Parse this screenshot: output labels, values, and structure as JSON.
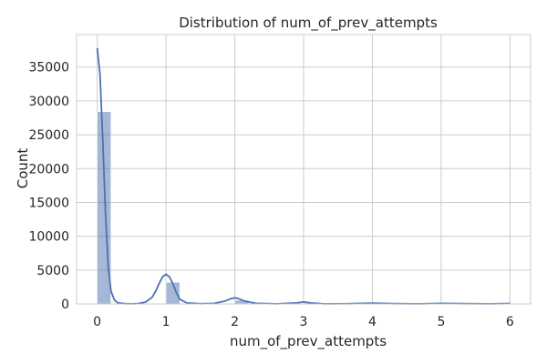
{
  "chart_data": {
    "type": "bar",
    "title": "Distribution of num_of_prev_attempts",
    "xlabel": "num_of_prev_attempts",
    "ylabel": "Count",
    "xlim": [
      -0.3,
      6.3
    ],
    "ylim": [
      0,
      39800
    ],
    "x_ticks": [
      0,
      1,
      2,
      3,
      4,
      5,
      6
    ],
    "y_ticks": [
      0,
      5000,
      10000,
      15000,
      20000,
      25000,
      30000,
      35000
    ],
    "grid": true,
    "series": [
      {
        "name": "",
        "kind": "histogram",
        "bin_width": 0.2,
        "bins": [
          {
            "x0": 0.0,
            "x1": 0.2,
            "count": 28400
          },
          {
            "x0": 1.0,
            "x1": 1.2,
            "count": 3200
          },
          {
            "x0": 2.0,
            "x1": 2.2,
            "count": 550
          },
          {
            "x0": 3.0,
            "x1": 3.2,
            "count": 150
          },
          {
            "x0": 4.0,
            "x1": 4.2,
            "count": 60
          },
          {
            "x0": 5.0,
            "x1": 5.2,
            "count": 25
          },
          {
            "x0": 5.8,
            "x1": 6.0,
            "count": 20
          }
        ]
      },
      {
        "name": "",
        "kind": "kde",
        "x": [
          0.0,
          0.04,
          0.08,
          0.12,
          0.16,
          0.2,
          0.25,
          0.3,
          0.4,
          0.5,
          0.6,
          0.7,
          0.8,
          0.85,
          0.9,
          0.95,
          1.0,
          1.05,
          1.1,
          1.15,
          1.2,
          1.3,
          1.5,
          1.7,
          1.85,
          1.95,
          2.0,
          2.05,
          2.15,
          2.3,
          2.6,
          2.9,
          3.0,
          3.1,
          3.3,
          3.7,
          4.0,
          4.3,
          4.7,
          5.0,
          5.3,
          5.7,
          6.0
        ],
        "y": [
          37800,
          34000,
          24500,
          13500,
          5500,
          1900,
          600,
          150,
          40,
          20,
          60,
          250,
          1000,
          1900,
          3000,
          4000,
          4400,
          4000,
          3000,
          1700,
          700,
          150,
          30,
          80,
          400,
          800,
          900,
          800,
          400,
          100,
          20,
          150,
          300,
          150,
          20,
          40,
          120,
          40,
          20,
          80,
          40,
          20,
          60
        ]
      }
    ],
    "colors": {
      "bar_fill": "#4c72b0",
      "bar_opacity": "0.5",
      "line": "#4c72b0",
      "grid": "#cccccc",
      "text": "#262626"
    }
  }
}
